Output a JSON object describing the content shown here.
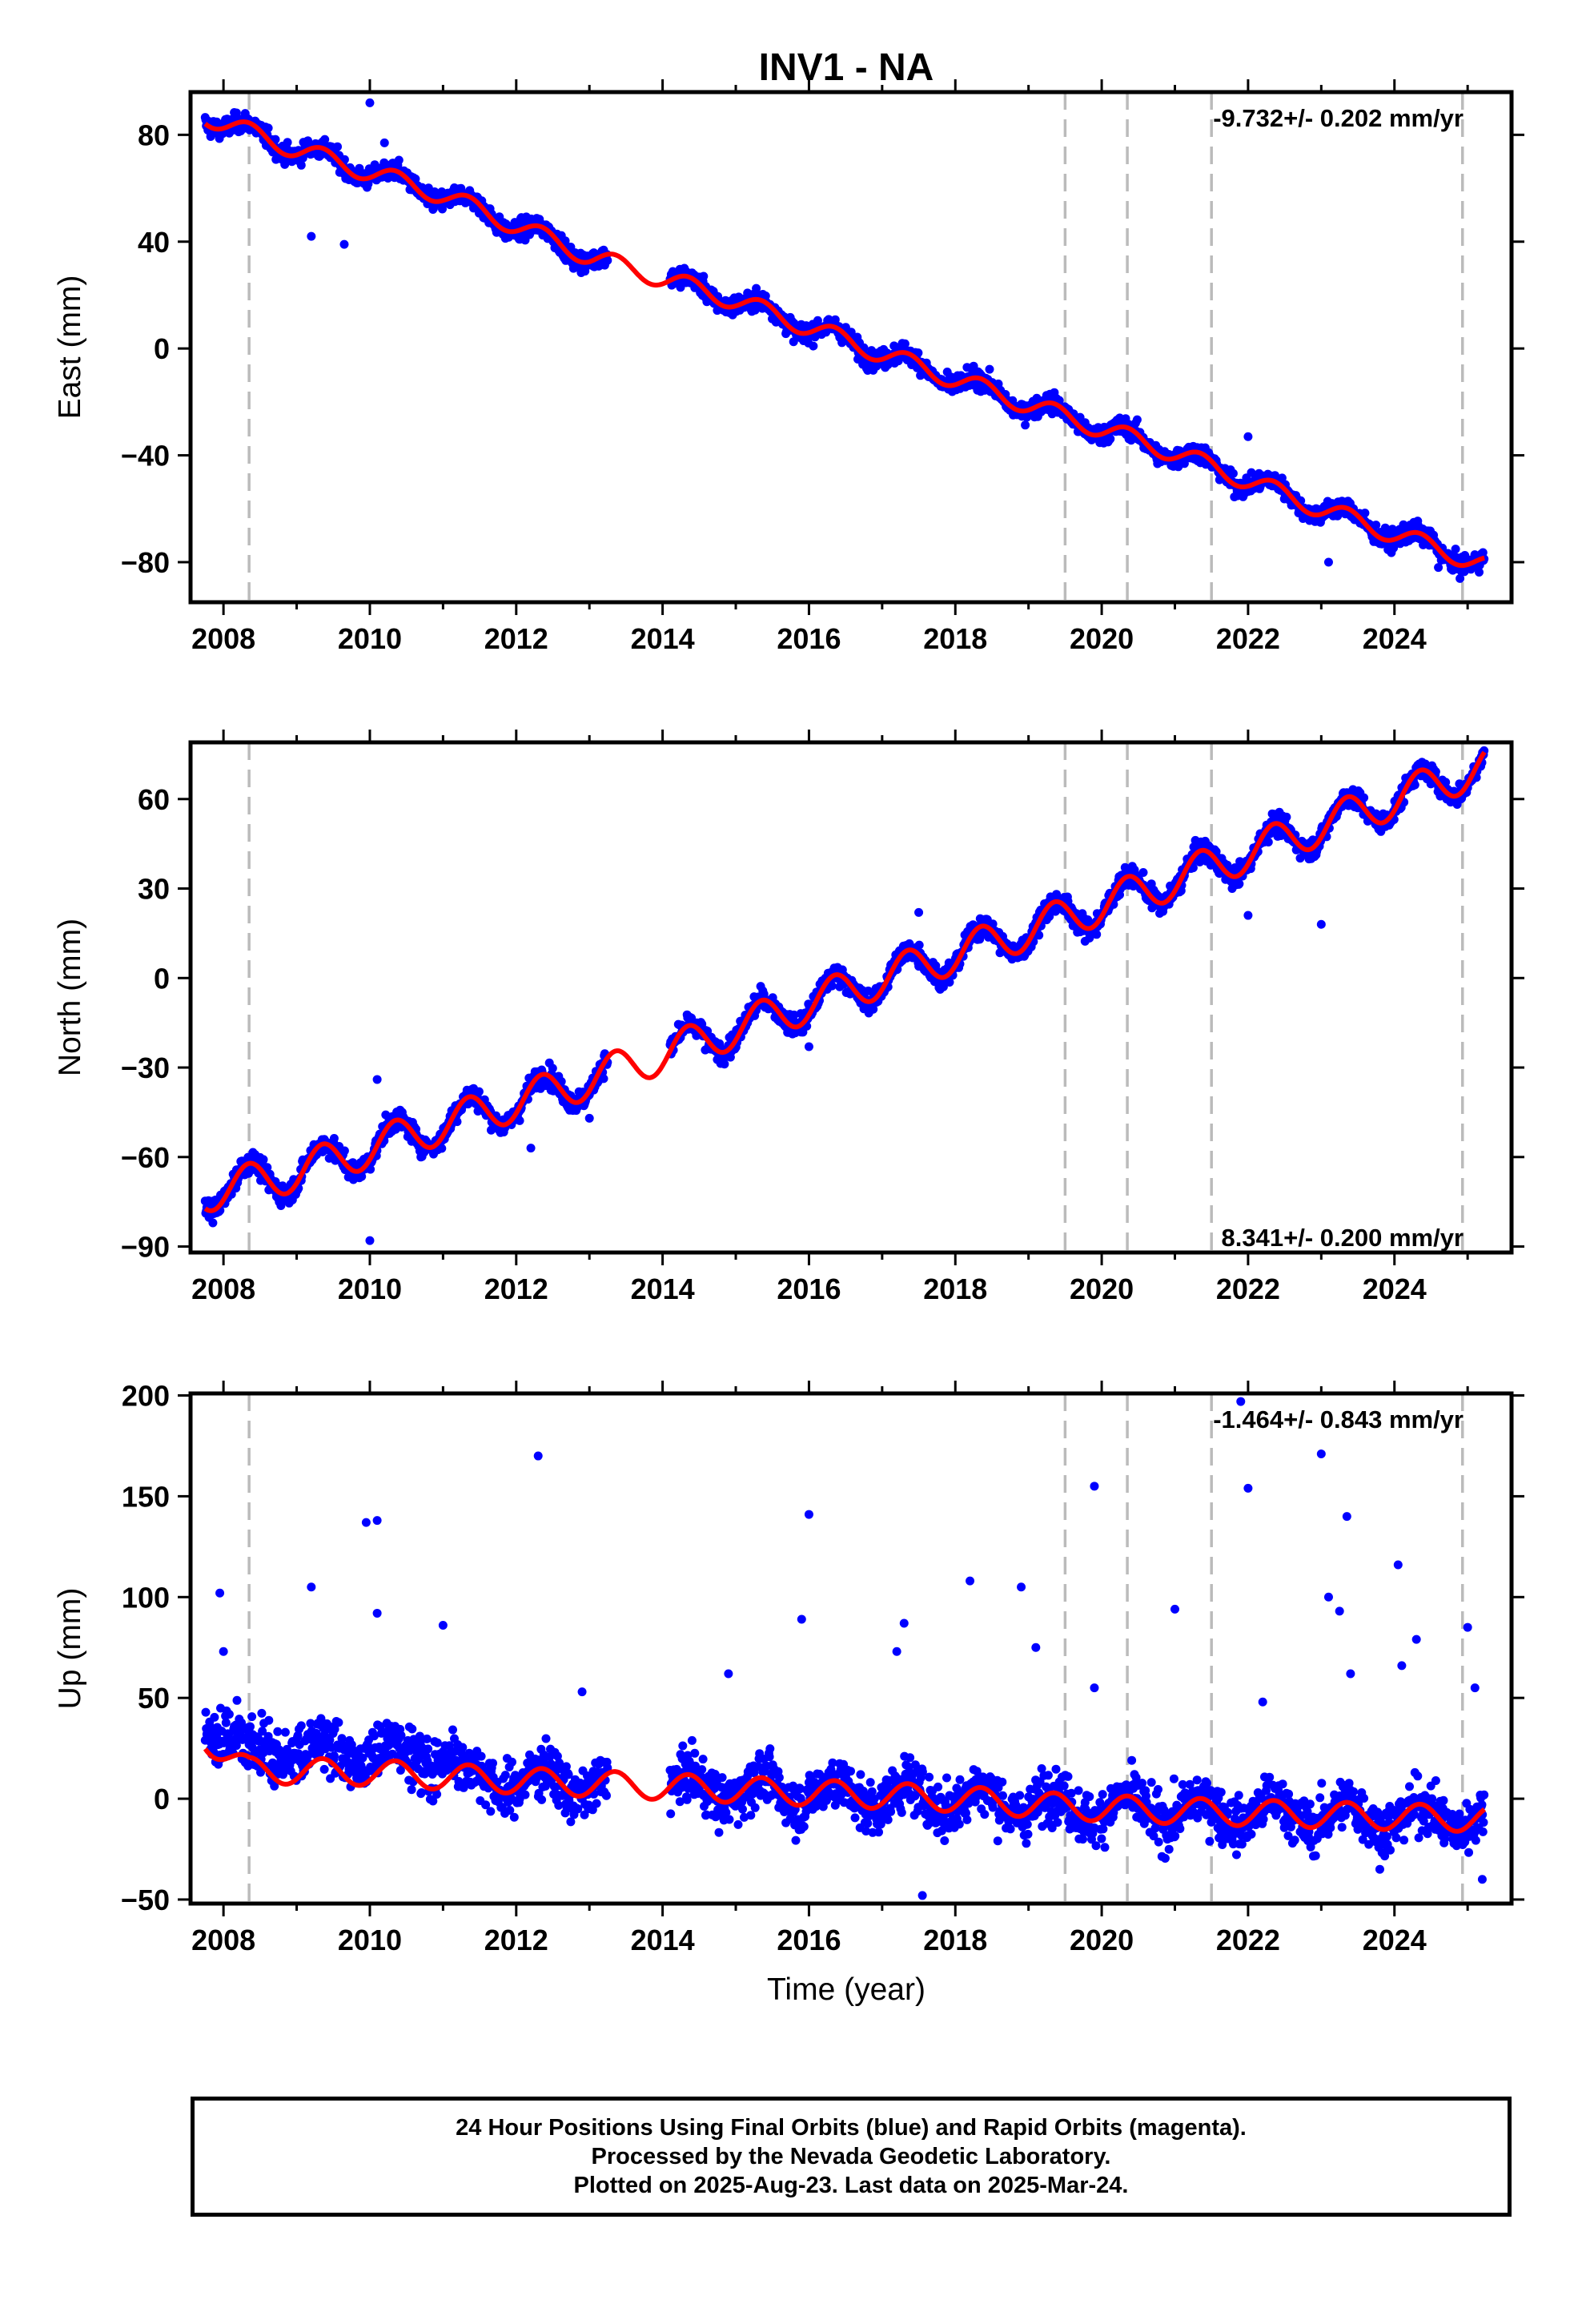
{
  "title": "INV1 - NA",
  "xlabel": "Time (year)",
  "colors": {
    "data": "#0000ff",
    "model": "#ff0000",
    "steps": "#bbbbbb",
    "axis": "#000000"
  },
  "caption": {
    "line1": "24 Hour Positions Using Final Orbits (blue) and Rapid Orbits (magenta).",
    "line2": "Processed by the Nevada Geodetic Laboratory.",
    "line3": "Plotted on 2025-Aug-23. Last data on 2025-Mar-24."
  },
  "chart_data": [
    {
      "type": "scatter",
      "ylabel": "East (mm)",
      "rate_label": "-9.732+/- 0.202 mm/yr",
      "rate": -9.732,
      "xlim": [
        2007.55,
        2025.6
      ],
      "ylim": [
        -95,
        96
      ],
      "xticks": [
        2008,
        2010,
        2012,
        2014,
        2016,
        2018,
        2020,
        2022,
        2024
      ],
      "yticks": [
        -80,
        -40,
        0,
        40,
        80
      ],
      "offset_epochs": [
        2008.35,
        2019.5,
        2020.35,
        2021.5,
        2024.93
      ],
      "data_gap": [
        2013.25,
        2014.1
      ],
      "data_range": [
        2007.75,
        2025.23
      ],
      "annual_amplitude": 3.5,
      "scatter": 2.5,
      "series": [
        {
          "name": "model",
          "x": [
            2007.75,
            2009,
            2011,
            2013,
            2015,
            2017,
            2019,
            2021,
            2023,
            2025.23
          ],
          "y": [
            87,
            74.5,
            57.5,
            34.5,
            18,
            -2,
            -21,
            -39,
            -60,
            -81
          ]
        }
      ],
      "outliers": [
        {
          "x": 2009.2,
          "y": 42
        },
        {
          "x": 2009.65,
          "y": 39
        },
        {
          "x": 2010.0,
          "y": 92
        },
        {
          "x": 2010.2,
          "y": 77
        },
        {
          "x": 2022.0,
          "y": -33
        },
        {
          "x": 2023.1,
          "y": -80
        },
        {
          "x": 2024.6,
          "y": -82
        }
      ]
    },
    {
      "type": "scatter",
      "ylabel": "North (mm)",
      "rate_label": "8.341+/- 0.200 mm/yr",
      "rate": 8.341,
      "xlim": [
        2007.55,
        2025.6
      ],
      "ylim": [
        -92,
        79
      ],
      "xticks": [
        2008,
        2010,
        2012,
        2014,
        2016,
        2018,
        2020,
        2022,
        2024
      ],
      "yticks": [
        -90,
        -60,
        -30,
        0,
        30,
        60
      ],
      "offset_epochs": [
        2008.35,
        2019.5,
        2020.35,
        2021.5,
        2024.93
      ],
      "data_gap": [
        2013.25,
        2014.1
      ],
      "data_range": [
        2007.75,
        2025.23
      ],
      "annual_amplitude": 6.5,
      "scatter": 2.5,
      "series": [
        {
          "name": "model",
          "x": [
            2007.75,
            2009,
            2011,
            2013,
            2015,
            2017,
            2019,
            2021,
            2023,
            2025.23
          ],
          "y": [
            -72,
            -65,
            -49,
            -34,
            -17,
            0,
            16,
            33,
            51,
            71
          ]
        }
      ],
      "outliers": [
        {
          "x": 2010.0,
          "y": -88
        },
        {
          "x": 2010.1,
          "y": -34
        },
        {
          "x": 2012.2,
          "y": -57
        },
        {
          "x": 2013.0,
          "y": -47
        },
        {
          "x": 2016.0,
          "y": -23
        },
        {
          "x": 2022.0,
          "y": 21
        },
        {
          "x": 2023.0,
          "y": 18
        },
        {
          "x": 2017.5,
          "y": 22
        }
      ]
    },
    {
      "type": "scatter",
      "ylabel": "Up (mm)",
      "rate_label": "-1.464+/- 0.843 mm/yr",
      "rate": -1.464,
      "xlim": [
        2007.55,
        2025.6
      ],
      "ylim": [
        -52,
        201
      ],
      "xticks": [
        2008,
        2010,
        2012,
        2014,
        2016,
        2018,
        2020,
        2022,
        2024
      ],
      "yticks": [
        -50,
        0,
        50,
        100,
        150,
        200
      ],
      "offset_epochs": [
        2008.35,
        2019.5,
        2020.35,
        2021.5,
        2024.93
      ],
      "data_gap": [
        2013.25,
        2014.1
      ],
      "data_range": [
        2007.75,
        2025.23
      ],
      "annual_amplitude": 6.5,
      "scatter": 9,
      "series": [
        {
          "name": "model",
          "x": [
            2007.75,
            2008.35,
            2010,
            2012,
            2014,
            2016,
            2018,
            2019.5,
            2021,
            2023,
            2025.23
          ],
          "y": [
            30,
            14,
            13,
            9,
            6,
            3,
            0,
            -4,
            -6,
            -8,
            -10
          ]
        }
      ],
      "outliers": [
        {
          "x": 2007.95,
          "y": 102
        },
        {
          "x": 2008.0,
          "y": 73
        },
        {
          "x": 2009.2,
          "y": 105
        },
        {
          "x": 2009.95,
          "y": 137
        },
        {
          "x": 2010.1,
          "y": 138
        },
        {
          "x": 2010.1,
          "y": 92
        },
        {
          "x": 2011.0,
          "y": 86
        },
        {
          "x": 2012.3,
          "y": 170
        },
        {
          "x": 2012.9,
          "y": 53
        },
        {
          "x": 2014.9,
          "y": 62
        },
        {
          "x": 2015.9,
          "y": 89
        },
        {
          "x": 2016.0,
          "y": 141
        },
        {
          "x": 2017.2,
          "y": 73
        },
        {
          "x": 2017.3,
          "y": 87
        },
        {
          "x": 2017.55,
          "y": -48
        },
        {
          "x": 2018.2,
          "y": 108
        },
        {
          "x": 2018.9,
          "y": 105
        },
        {
          "x": 2019.1,
          "y": 75
        },
        {
          "x": 2019.9,
          "y": 155
        },
        {
          "x": 2019.9,
          "y": 55
        },
        {
          "x": 2021.0,
          "y": 94
        },
        {
          "x": 2021.9,
          "y": 197
        },
        {
          "x": 2022.0,
          "y": 154
        },
        {
          "x": 2022.2,
          "y": 48
        },
        {
          "x": 2023.0,
          "y": 171
        },
        {
          "x": 2023.1,
          "y": 100
        },
        {
          "x": 2023.25,
          "y": 93
        },
        {
          "x": 2023.35,
          "y": 140
        },
        {
          "x": 2023.4,
          "y": 62
        },
        {
          "x": 2024.05,
          "y": 116
        },
        {
          "x": 2024.1,
          "y": 66
        },
        {
          "x": 2024.3,
          "y": 79
        },
        {
          "x": 2025.0,
          "y": 85
        },
        {
          "x": 2025.1,
          "y": 55
        },
        {
          "x": 2025.2,
          "y": -40
        },
        {
          "x": 2023.8,
          "y": -35
        }
      ]
    }
  ]
}
